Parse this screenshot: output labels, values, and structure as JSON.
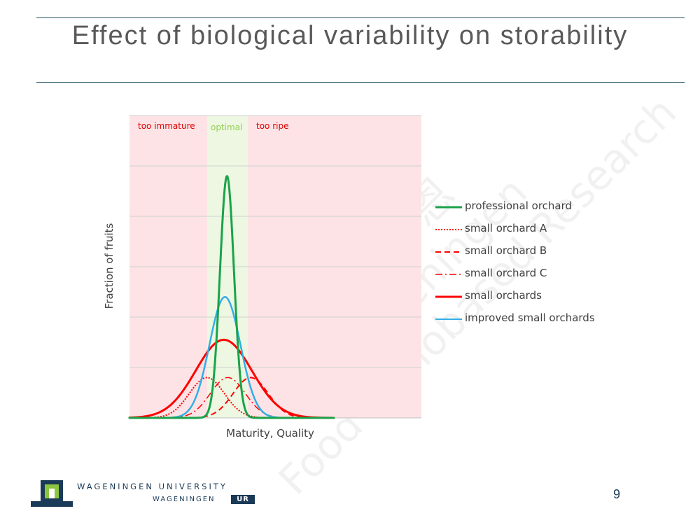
{
  "slide": {
    "title": "Effect of biological variability on storability",
    "page_number": "9"
  },
  "logo": {
    "university": "WAGENINGEN UNIVERSITY",
    "ur_text": "WAGENINGEN",
    "ur_badge": "UR"
  },
  "watermark": {
    "line1": "Wageningen",
    "line2": "Food & Biobased Research",
    "chinese": "瓦赫宁恩"
  },
  "colors": {
    "zone_outer": "#fde3e5",
    "zone_optimal": "#eef7e2",
    "professional": "#1aa34a",
    "small": "#ff0000",
    "improved": "#33aee6",
    "grid": "#d0d0d0",
    "title_rule": "#1f4e5f"
  },
  "chart_data": {
    "type": "line",
    "xlabel": "Maturity, Quality",
    "ylabel": "Fraction of fruits",
    "x_range": [
      0,
      100
    ],
    "y_range": [
      0,
      6
    ],
    "grid": "horizontal",
    "legend_position": "right",
    "zones": [
      {
        "label": "too immature",
        "from": 0,
        "to": 26.7
      },
      {
        "label": "optimal",
        "from": 26.7,
        "to": 40.5
      },
      {
        "label": "too ripe",
        "from": 40.5,
        "to": 100
      }
    ],
    "series": [
      {
        "name": "professional orchard",
        "style": "solid",
        "color": "#1aa34a",
        "mean": 33.4,
        "sd": 2.4,
        "peak": 4.8
      },
      {
        "name": "small orchard A",
        "style": "dotted",
        "color": "#ff0000",
        "mean": 26.5,
        "sd": 6.0,
        "peak": 0.8
      },
      {
        "name": "small orchard B",
        "style": "dashed",
        "color": "#ff0000",
        "mean": 41.5,
        "sd": 6.0,
        "peak": 0.8
      },
      {
        "name": "small orchard C",
        "style": "dashdot",
        "color": "#ff0000",
        "mean": 33.7,
        "sd": 6.0,
        "peak": 0.8
      },
      {
        "name": "small orchards",
        "style": "solid",
        "color": "#ff0000",
        "mean": 32.3,
        "sd": 9.6,
        "peak": 1.55
      },
      {
        "name": "improved small orchards",
        "style": "solid",
        "color": "#33aee6",
        "mean": 32.7,
        "sd": 5.3,
        "peak": 2.4
      }
    ]
  }
}
